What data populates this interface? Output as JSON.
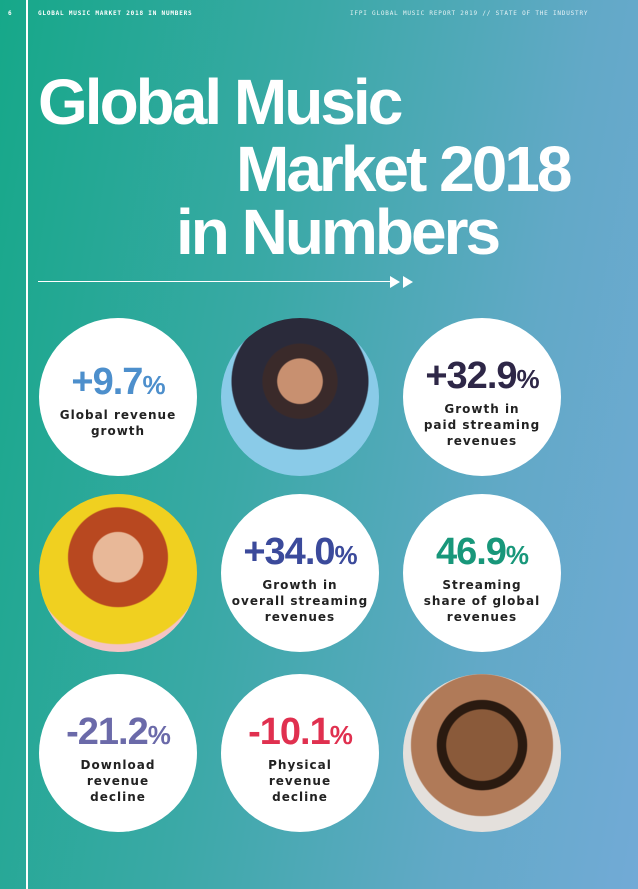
{
  "header": {
    "page_number": "6",
    "section": "GLOBAL MUSIC MARKET 2018 IN NUMBERS",
    "report": "IFPI GLOBAL MUSIC REPORT 2019 // STATE OF THE INDUSTRY"
  },
  "title": {
    "lines": [
      "Global Music",
      "Market 2018",
      "in Numbers"
    ]
  },
  "stats": [
    {
      "value": "+9.7",
      "unit": "%",
      "label": [
        "Global revenue",
        "growth"
      ],
      "color": "#4d8fcc"
    },
    {
      "value": "+32.9",
      "unit": "%",
      "label": [
        "Growth in",
        "paid streaming",
        "revenues"
      ],
      "color": "#2e2747"
    },
    {
      "value": "+34.0",
      "unit": "%",
      "label": [
        "Growth in",
        "overall streaming",
        "revenues"
      ],
      "color": "#3b4a9b"
    },
    {
      "value": "46.9",
      "unit": "%",
      "label": [
        "Streaming",
        "share of global",
        "revenues"
      ],
      "color": "#18977a"
    },
    {
      "value": "-21.2",
      "unit": "%",
      "label": [
        "Download",
        "revenue",
        "decline"
      ],
      "color": "#6b6aa9"
    },
    {
      "value": "-10.1",
      "unit": "%",
      "label": [
        "Physical",
        "revenue",
        "decline"
      ],
      "color": "#e0304f"
    }
  ]
}
